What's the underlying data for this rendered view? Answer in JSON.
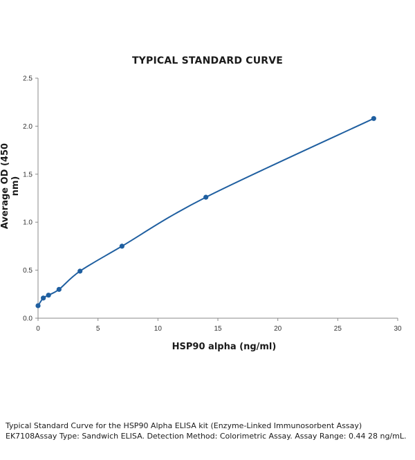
{
  "chart_data": {
    "type": "line",
    "title": "TYPICAL STANDARD CURVE",
    "xlabel": "HSP90 alpha (ng/ml)",
    "ylabel": "Average OD (450 nm)",
    "xlim": [
      0,
      30
    ],
    "ylim": [
      0,
      2.5
    ],
    "x_ticks": [
      "0",
      "5",
      "10",
      "15",
      "20",
      "25",
      "30"
    ],
    "y_ticks": [
      "0.0",
      "0.5",
      "1.0",
      "1.5",
      "2.0",
      "2.5"
    ],
    "x_tick_values": [
      0,
      5,
      10,
      15,
      20,
      25,
      30
    ],
    "y_tick_values": [
      0,
      0.5,
      1.0,
      1.5,
      2.0,
      2.5
    ],
    "grid": false,
    "smooth": true,
    "series": [
      {
        "color": "#1f5fa0",
        "x": [
          0,
          0.44,
          0.875,
          1.75,
          3.5,
          7,
          14,
          28
        ],
        "y": [
          0.13,
          0.21,
          0.24,
          0.3,
          0.49,
          0.75,
          1.26,
          2.08
        ]
      }
    ]
  },
  "caption": "Typical Standard Curve for the HSP90 Alpha ELISA kit (Enzyme-Linked Immunosorbent Assay) EK7108Assay Type: Sandwich ELISA. Detection Method: Colorimetric Assay. Assay Range: 0.44 28 ng/mL."
}
